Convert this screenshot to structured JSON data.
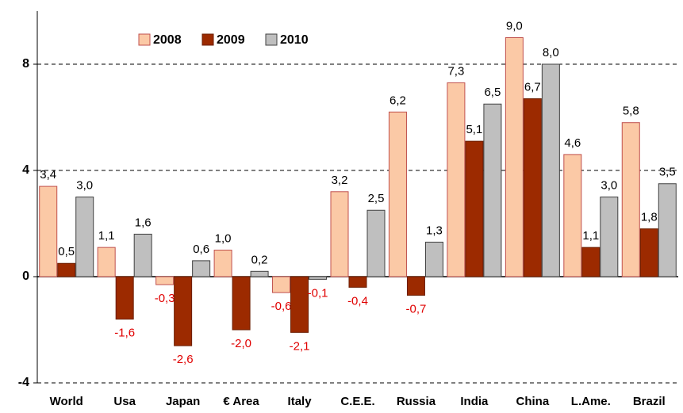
{
  "chart_data": {
    "type": "bar",
    "categories": [
      "World",
      "Usa",
      "Japan",
      "€ Area",
      "Italy",
      "C.E.E.",
      "Russia",
      "India",
      "China",
      "L.Ame.",
      "Brazil"
    ],
    "series": [
      {
        "name": "2008",
        "color": "#fbc9a6",
        "stroke": "#c0504d",
        "values": [
          3.4,
          1.1,
          -0.3,
          1.0,
          -0.6,
          3.2,
          6.2,
          7.3,
          9.0,
          4.6,
          5.8
        ],
        "value_labels": [
          "3,4",
          "1,1",
          "-0,3",
          "1,0",
          "-0,6",
          "3,2",
          "6,2",
          "7,3",
          "9,0",
          "4,6",
          "5,8"
        ]
      },
      {
        "name": "2009",
        "color": "#9c2a00",
        "stroke": "#6b1d00",
        "values": [
          0.5,
          -1.6,
          -2.6,
          -2.0,
          -2.1,
          -0.4,
          -0.7,
          5.1,
          6.7,
          1.1,
          1.8
        ],
        "value_labels": [
          "0,5",
          "-1,6",
          "-2,6",
          "-2,0",
          "-2,1",
          "-0,4",
          "-0,7",
          "5,1",
          "6,7",
          "1,1",
          "1,8"
        ]
      },
      {
        "name": "2010",
        "color": "#bfbfbf",
        "stroke": "#404040",
        "values": [
          3.0,
          1.6,
          0.6,
          0.2,
          -0.1,
          2.5,
          1.3,
          6.5,
          8.0,
          3.0,
          3.5
        ],
        "value_labels": [
          "3,0",
          "1,6",
          "0,6",
          "0,2",
          "-0,1",
          "2,5",
          "1,3",
          "6,5",
          "8,0",
          "3,0",
          "3,5"
        ]
      }
    ],
    "ylim": [
      -4,
      10
    ],
    "yticks": [
      -4,
      0,
      4,
      8
    ],
    "grid": true
  }
}
